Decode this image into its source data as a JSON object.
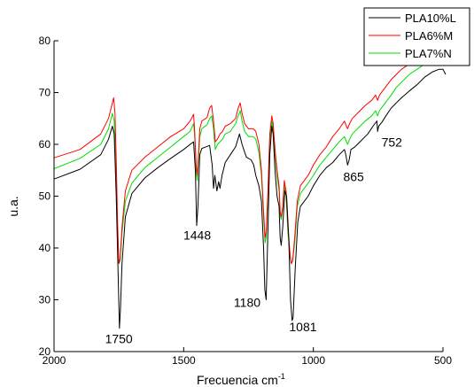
{
  "chart_data": {
    "type": "line",
    "title": "",
    "xlabel": "Frecuencia cm",
    "xlabel_sup": "-1",
    "ylabel": "u.a.",
    "xlim": [
      2000,
      500
    ],
    "ylim": [
      20,
      80
    ],
    "x_reversed": true,
    "grid": false,
    "legend_position": "top-right",
    "x_ticks": [
      {
        "value": 2000,
        "label": "2000"
      },
      {
        "value": 1500,
        "label": "1500"
      },
      {
        "value": 1000,
        "label": "1000"
      },
      {
        "value": 500,
        "label": "500"
      }
    ],
    "y_ticks": [
      {
        "value": 20,
        "label": "20"
      },
      {
        "value": 30,
        "label": "30"
      },
      {
        "value": 40,
        "label": "40"
      },
      {
        "value": 50,
        "label": "50"
      },
      {
        "value": 60,
        "label": "60"
      },
      {
        "value": 70,
        "label": "70"
      },
      {
        "value": 80,
        "label": "80"
      }
    ],
    "series": [
      {
        "name": "PLA10%L",
        "color": "#000000",
        "points": [
          [
            2000,
            53.3
          ],
          [
            1900,
            55.2
          ],
          [
            1820,
            58
          ],
          [
            1790,
            61
          ],
          [
            1775,
            63.5
          ],
          [
            1768,
            62
          ],
          [
            1760,
            50
          ],
          [
            1752,
            33
          ],
          [
            1748,
            24.5
          ],
          [
            1744,
            28
          ],
          [
            1738,
            37
          ],
          [
            1725,
            46
          ],
          [
            1700,
            50.5
          ],
          [
            1650,
            53.5
          ],
          [
            1600,
            55.5
          ],
          [
            1550,
            57.3
          ],
          [
            1500,
            59
          ],
          [
            1475,
            60
          ],
          [
            1462,
            60.5
          ],
          [
            1455,
            55
          ],
          [
            1450,
            44.3
          ],
          [
            1445,
            48
          ],
          [
            1438,
            58
          ],
          [
            1430,
            59.2
          ],
          [
            1400,
            59.8
          ],
          [
            1390,
            56
          ],
          [
            1385,
            51.5
          ],
          [
            1380,
            54
          ],
          [
            1372,
            51
          ],
          [
            1365,
            52.8
          ],
          [
            1360,
            51.5
          ],
          [
            1352,
            54
          ],
          [
            1340,
            56.5
          ],
          [
            1320,
            58
          ],
          [
            1300,
            59.5
          ],
          [
            1285,
            62
          ],
          [
            1275,
            60
          ],
          [
            1265,
            58.5
          ],
          [
            1258,
            57.5
          ],
          [
            1240,
            57
          ],
          [
            1230,
            56
          ],
          [
            1222,
            54
          ],
          [
            1210,
            52
          ],
          [
            1200,
            49
          ],
          [
            1192,
            40
          ],
          [
            1187,
            32
          ],
          [
            1182,
            30
          ],
          [
            1176,
            42
          ],
          [
            1168,
            58
          ],
          [
            1160,
            63.5
          ],
          [
            1155,
            62
          ],
          [
            1148,
            55
          ],
          [
            1140,
            50
          ],
          [
            1132,
            48
          ],
          [
            1128,
            42
          ],
          [
            1124,
            40.5
          ],
          [
            1118,
            44
          ],
          [
            1110,
            51
          ],
          [
            1103,
            50
          ],
          [
            1095,
            42
          ],
          [
            1088,
            30
          ],
          [
            1082,
            26
          ],
          [
            1078,
            26.5
          ],
          [
            1070,
            36
          ],
          [
            1060,
            45
          ],
          [
            1050,
            48
          ],
          [
            1035,
            49
          ],
          [
            1020,
            50
          ],
          [
            1000,
            52
          ],
          [
            975,
            54
          ],
          [
            950,
            55.5
          ],
          [
            925,
            56.5
          ],
          [
            900,
            58
          ],
          [
            880,
            59
          ],
          [
            875,
            58
          ],
          [
            868,
            56
          ],
          [
            862,
            57
          ],
          [
            855,
            59
          ],
          [
            840,
            59.5
          ],
          [
            820,
            60.5
          ],
          [
            800,
            61.5
          ],
          [
            790,
            62
          ],
          [
            770,
            63.5
          ],
          [
            755,
            64.5
          ],
          [
            752,
            62.5
          ],
          [
            748,
            63.5
          ],
          [
            735,
            64.3
          ],
          [
            720,
            65.5
          ],
          [
            700,
            67
          ],
          [
            680,
            68
          ],
          [
            660,
            69
          ],
          [
            630,
            70.3
          ],
          [
            600,
            71.5
          ],
          [
            570,
            73
          ],
          [
            540,
            74
          ],
          [
            515,
            74.5
          ],
          [
            500,
            74.5
          ],
          [
            490,
            73.5
          ]
        ]
      },
      {
        "name": "PLA6%M",
        "color": "#ff0000",
        "points": [
          [
            2000,
            57.4
          ],
          [
            1900,
            59
          ],
          [
            1820,
            62
          ],
          [
            1790,
            65
          ],
          [
            1775,
            68
          ],
          [
            1770,
            69
          ],
          [
            1765,
            66
          ],
          [
            1760,
            57
          ],
          [
            1755,
            45
          ],
          [
            1750,
            37
          ],
          [
            1745,
            38
          ],
          [
            1738,
            44
          ],
          [
            1725,
            51
          ],
          [
            1700,
            55
          ],
          [
            1650,
            57.5
          ],
          [
            1600,
            59.5
          ],
          [
            1550,
            61.5
          ],
          [
            1500,
            63
          ],
          [
            1475,
            64.5
          ],
          [
            1462,
            65.8
          ],
          [
            1458,
            63
          ],
          [
            1452,
            56
          ],
          [
            1448,
            54
          ],
          [
            1444,
            57
          ],
          [
            1438,
            63
          ],
          [
            1430,
            64.5
          ],
          [
            1410,
            65.2
          ],
          [
            1400,
            67
          ],
          [
            1392,
            67.5
          ],
          [
            1385,
            64.5
          ],
          [
            1378,
            60.5
          ],
          [
            1370,
            61
          ],
          [
            1360,
            62
          ],
          [
            1350,
            62.5
          ],
          [
            1340,
            63.5
          ],
          [
            1320,
            64
          ],
          [
            1300,
            65
          ],
          [
            1290,
            67
          ],
          [
            1282,
            68
          ],
          [
            1275,
            66
          ],
          [
            1265,
            64
          ],
          [
            1250,
            63
          ],
          [
            1232,
            63
          ],
          [
            1222,
            62.5
          ],
          [
            1210,
            60
          ],
          [
            1200,
            55
          ],
          [
            1192,
            47
          ],
          [
            1186,
            42
          ],
          [
            1182,
            43
          ],
          [
            1176,
            50
          ],
          [
            1168,
            62
          ],
          [
            1160,
            65.5
          ],
          [
            1155,
            64
          ],
          [
            1148,
            59
          ],
          [
            1140,
            55
          ],
          [
            1132,
            52
          ],
          [
            1128,
            47
          ],
          [
            1124,
            46
          ],
          [
            1118,
            48
          ],
          [
            1112,
            53
          ],
          [
            1105,
            51
          ],
          [
            1098,
            44
          ],
          [
            1090,
            39
          ],
          [
            1085,
            37
          ],
          [
            1080,
            37.5
          ],
          [
            1072,
            42
          ],
          [
            1062,
            49
          ],
          [
            1050,
            52
          ],
          [
            1035,
            53
          ],
          [
            1020,
            54
          ],
          [
            1000,
            56
          ],
          [
            975,
            58
          ],
          [
            950,
            59.5
          ],
          [
            925,
            61.5
          ],
          [
            900,
            63
          ],
          [
            880,
            64.5
          ],
          [
            875,
            63.8
          ],
          [
            868,
            63
          ],
          [
            860,
            64
          ],
          [
            850,
            65
          ],
          [
            820,
            66.5
          ],
          [
            800,
            67.5
          ],
          [
            775,
            68.5
          ],
          [
            760,
            69.5
          ],
          [
            752,
            68.5
          ],
          [
            745,
            69.5
          ],
          [
            730,
            70.5
          ],
          [
            700,
            72.5
          ],
          [
            680,
            73.5
          ],
          [
            660,
            74.5
          ],
          [
            630,
            75.5
          ],
          [
            600,
            76
          ],
          [
            570,
            76.8
          ],
          [
            540,
            77.3
          ],
          [
            515,
            77.5
          ],
          [
            500,
            77.5
          ],
          [
            490,
            77.3
          ]
        ]
      },
      {
        "name": "PLA7%N",
        "color": "#00dd00",
        "points": [
          [
            2000,
            55.3
          ],
          [
            1900,
            57.3
          ],
          [
            1820,
            60
          ],
          [
            1790,
            63
          ],
          [
            1775,
            66
          ],
          [
            1768,
            64.5
          ],
          [
            1762,
            55
          ],
          [
            1755,
            43
          ],
          [
            1750,
            37
          ],
          [
            1745,
            37.5
          ],
          [
            1738,
            43
          ],
          [
            1725,
            49
          ],
          [
            1700,
            52.5
          ],
          [
            1650,
            55.5
          ],
          [
            1600,
            57.5
          ],
          [
            1550,
            59.5
          ],
          [
            1500,
            61.5
          ],
          [
            1475,
            62.5
          ],
          [
            1462,
            64
          ],
          [
            1458,
            62
          ],
          [
            1452,
            55
          ],
          [
            1448,
            53
          ],
          [
            1444,
            56
          ],
          [
            1438,
            61.5
          ],
          [
            1430,
            63
          ],
          [
            1410,
            63.8
          ],
          [
            1400,
            65
          ],
          [
            1392,
            65.5
          ],
          [
            1385,
            63
          ],
          [
            1378,
            59
          ],
          [
            1370,
            60
          ],
          [
            1360,
            60.5
          ],
          [
            1350,
            61
          ],
          [
            1340,
            62
          ],
          [
            1320,
            62.5
          ],
          [
            1300,
            64
          ],
          [
            1290,
            65.5
          ],
          [
            1282,
            66.5
          ],
          [
            1275,
            64.5
          ],
          [
            1265,
            62.5
          ],
          [
            1250,
            61.5
          ],
          [
            1232,
            61.5
          ],
          [
            1222,
            61
          ],
          [
            1210,
            58.5
          ],
          [
            1200,
            54
          ],
          [
            1192,
            46
          ],
          [
            1186,
            41
          ],
          [
            1182,
            42
          ],
          [
            1176,
            49
          ],
          [
            1168,
            61
          ],
          [
            1160,
            64.5
          ],
          [
            1155,
            63
          ],
          [
            1148,
            58
          ],
          [
            1140,
            54
          ],
          [
            1132,
            51
          ],
          [
            1128,
            46.5
          ],
          [
            1124,
            45.5
          ],
          [
            1118,
            47.5
          ],
          [
            1112,
            52
          ],
          [
            1105,
            50
          ],
          [
            1098,
            43
          ],
          [
            1090,
            38.5
          ],
          [
            1085,
            37
          ],
          [
            1080,
            37.5
          ],
          [
            1072,
            41
          ],
          [
            1062,
            48
          ],
          [
            1050,
            50.5
          ],
          [
            1035,
            51.5
          ],
          [
            1020,
            52.5
          ],
          [
            1000,
            54
          ],
          [
            975,
            56
          ],
          [
            950,
            57.5
          ],
          [
            925,
            59
          ],
          [
            900,
            60.5
          ],
          [
            880,
            61.5
          ],
          [
            875,
            60.8
          ],
          [
            868,
            60
          ],
          [
            860,
            61
          ],
          [
            850,
            62
          ],
          [
            820,
            63.5
          ],
          [
            800,
            64.5
          ],
          [
            775,
            65.5
          ],
          [
            760,
            66.5
          ],
          [
            752,
            65.5
          ],
          [
            745,
            66.5
          ],
          [
            730,
            67.5
          ],
          [
            700,
            69.5
          ],
          [
            680,
            71
          ],
          [
            660,
            72
          ],
          [
            630,
            73.5
          ],
          [
            600,
            74.5
          ],
          [
            570,
            75.5
          ],
          [
            540,
            76
          ],
          [
            515,
            76.3
          ],
          [
            500,
            76.3
          ],
          [
            490,
            76
          ]
        ]
      }
    ],
    "annotations": [
      {
        "text": "1750",
        "x": 1750,
        "y": 24
      },
      {
        "text": "1448",
        "x": 1448,
        "y": 44
      },
      {
        "text": "1180",
        "x": 1180,
        "y": 30
      },
      {
        "text": "1081",
        "x": 1081,
        "y": 26
      },
      {
        "text": "865",
        "x": 865,
        "y": 56
      },
      {
        "text": "752",
        "x": 752,
        "y": 62
      }
    ]
  }
}
